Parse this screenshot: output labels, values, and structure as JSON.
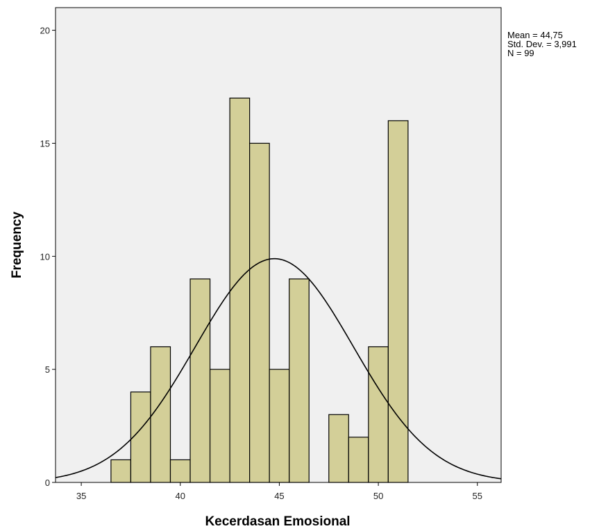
{
  "chart_data": {
    "type": "bar",
    "title": "",
    "xlabel": "Kecerdasan Emosional",
    "ylabel": "Frequency",
    "xlim": [
      33.7,
      56.2
    ],
    "ylim": [
      0,
      21
    ],
    "x_ticks": [
      35,
      40,
      45,
      50,
      55
    ],
    "y_ticks": [
      0,
      5,
      10,
      15,
      20
    ],
    "bin_width": 1,
    "bins": [
      {
        "x": 37,
        "count": 1
      },
      {
        "x": 38,
        "count": 4
      },
      {
        "x": 39,
        "count": 6
      },
      {
        "x": 40,
        "count": 1
      },
      {
        "x": 41,
        "count": 9
      },
      {
        "x": 42,
        "count": 5
      },
      {
        "x": 43,
        "count": 17
      },
      {
        "x": 44,
        "count": 15
      },
      {
        "x": 45,
        "count": 5
      },
      {
        "x": 46,
        "count": 9
      },
      {
        "x": 48,
        "count": 3
      },
      {
        "x": 49,
        "count": 2
      },
      {
        "x": 50,
        "count": 6
      },
      {
        "x": 51,
        "count": 16
      }
    ],
    "normal_curve": {
      "mean": 44.75,
      "std_dev": 3.991,
      "n": 99
    },
    "stats": {
      "mean_label": "Mean = 44,75",
      "std_label": "Std. Dev. = 3,991",
      "n_label": "N = 99"
    },
    "colors": {
      "plot_background": "#f0f0f0",
      "bar_fill": "#d3cf98",
      "bar_stroke": "#000000",
      "curve": "#000000"
    },
    "grid": false
  }
}
